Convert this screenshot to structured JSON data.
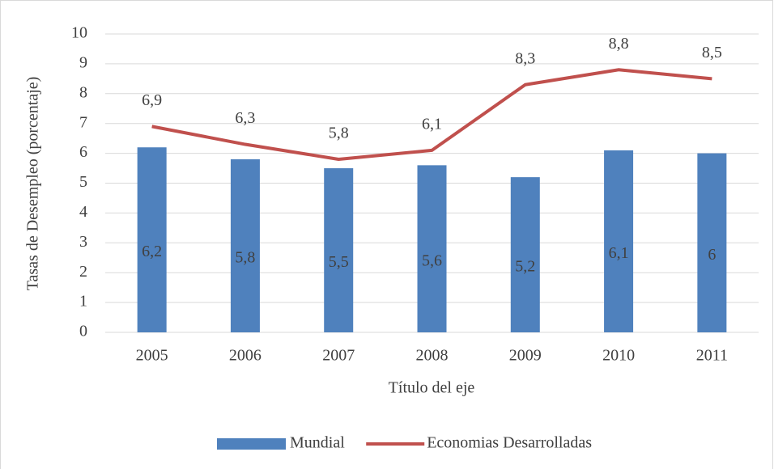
{
  "chart_data": {
    "type": "bar",
    "categories": [
      "2005",
      "2006",
      "2007",
      "2008",
      "2009",
      "2010",
      "2011"
    ],
    "series": [
      {
        "name": "Mundial",
        "type": "bar",
        "color": "#4f81bd",
        "values": [
          6.2,
          5.8,
          5.5,
          5.6,
          5.2,
          6.1,
          6
        ],
        "value_labels": [
          "6,2",
          "5,8",
          "5,5",
          "5,6",
          "5,2",
          "6,1",
          "6"
        ]
      },
      {
        "name": "Economias Desarrolladas",
        "type": "line",
        "color": "#c0504d",
        "values": [
          6.9,
          6.3,
          5.8,
          6.1,
          8.3,
          8.8,
          8.5
        ],
        "value_labels": [
          "6,9",
          "6,3",
          "5,8",
          "6,1",
          "8,3",
          "8,8",
          "8,5"
        ]
      }
    ],
    "y_label": "Tasas de Desempleo (porcentaje)",
    "x_label": "Título del eje",
    "ylim": [
      0,
      10
    ],
    "yticks": [
      0,
      1,
      2,
      3,
      4,
      5,
      6,
      7,
      8,
      9,
      10
    ],
    "grid": true,
    "legend": "bottom"
  }
}
